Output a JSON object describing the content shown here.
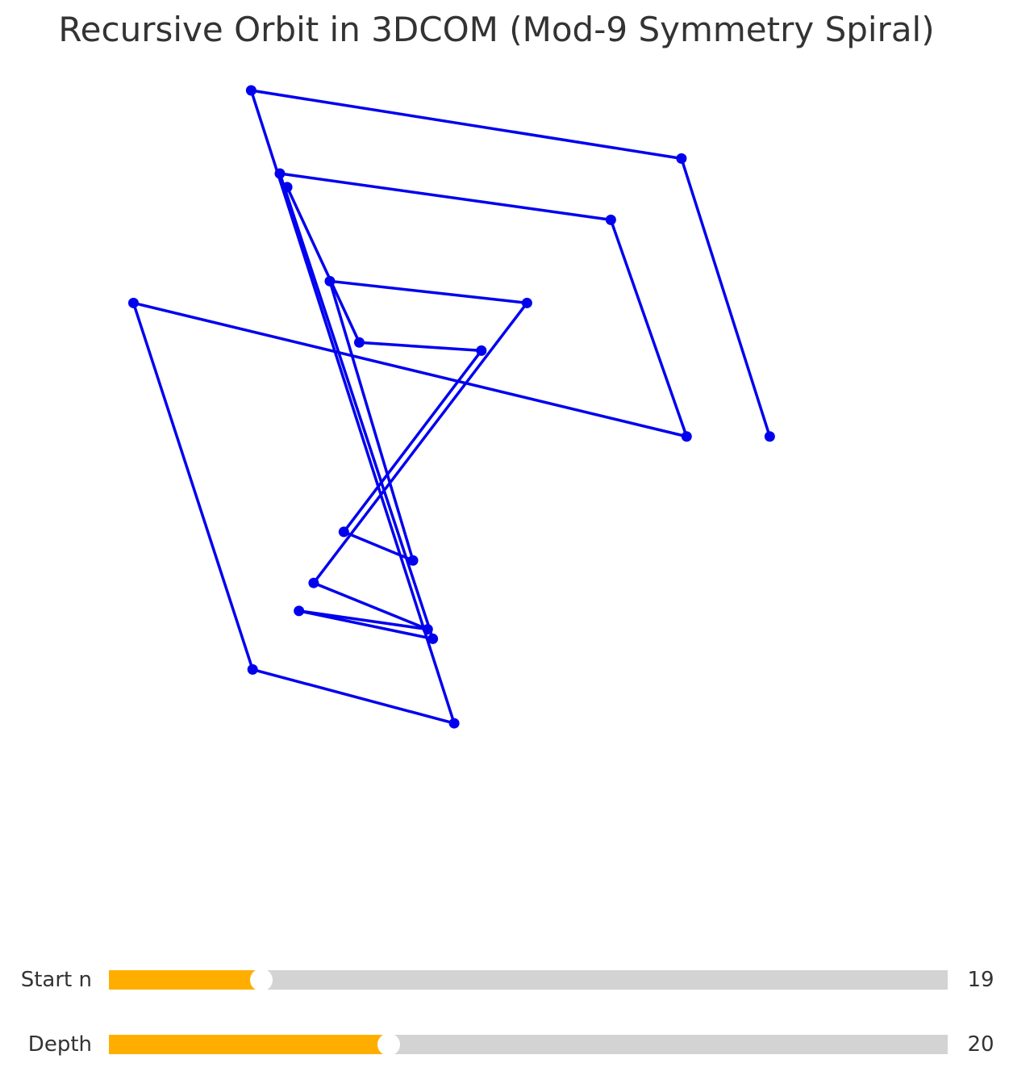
{
  "title": "Recursive Orbit in 3DCOM (Mod-9 Symmetry Spiral)",
  "colors": {
    "line": "#0000ee",
    "accent": "#ffae00",
    "track": "#d3d3d3",
    "knob": "#ffffff"
  },
  "chart_data": {
    "type": "line",
    "title": "Recursive Orbit in 3DCOM (Mod-9 Symmetry Spiral)",
    "xlabel": "",
    "ylabel": "",
    "axes_visible": false,
    "grid": false,
    "markers": true,
    "xlim": [
      0,
      100
    ],
    "ylim": [
      0,
      100
    ],
    "series": [
      {
        "points": [
          [
            87.1,
            49.2
          ],
          [
            75.1,
            90.0
          ],
          [
            16.6,
            100.0
          ],
          [
            44.2,
            7.1
          ],
          [
            16.8,
            15.0
          ],
          [
            0.6,
            68.8
          ],
          [
            75.8,
            49.2
          ],
          [
            65.5,
            81.0
          ],
          [
            20.5,
            87.8
          ],
          [
            41.3,
            19.5
          ],
          [
            23.1,
            23.6
          ],
          [
            40.6,
            20.9
          ],
          [
            25.1,
            27.7
          ],
          [
            54.1,
            68.8
          ],
          [
            27.3,
            72.0
          ],
          [
            38.6,
            31.0
          ],
          [
            29.2,
            35.2
          ],
          [
            47.9,
            61.8
          ],
          [
            31.3,
            63.0
          ],
          [
            21.5,
            85.8
          ]
        ]
      }
    ]
  },
  "sliders": [
    {
      "label": "Start n",
      "value": "19",
      "fraction": 0.182
    },
    {
      "label": "Depth",
      "value": "20",
      "fraction": 0.334
    }
  ]
}
